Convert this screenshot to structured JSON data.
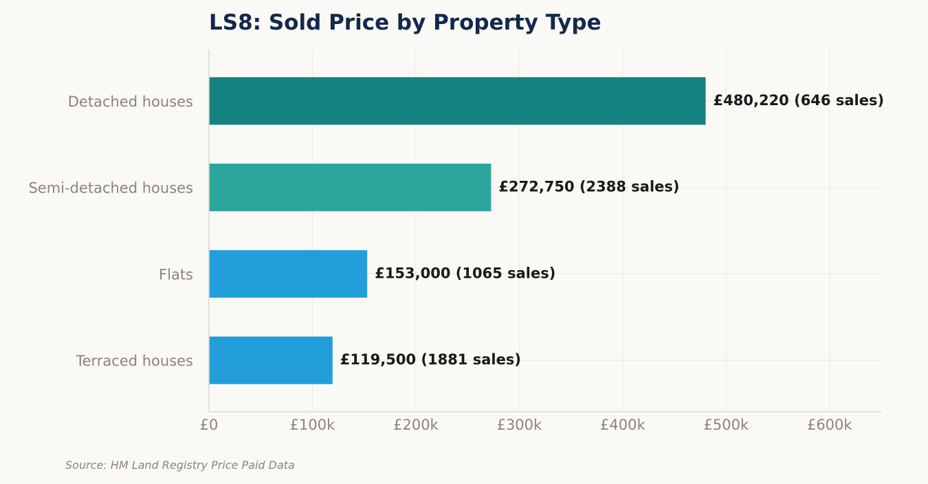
{
  "chart_data": {
    "type": "bar",
    "orientation": "horizontal",
    "title": "LS8: Sold Price by Property Type",
    "xlabel": "",
    "ylabel": "",
    "categories": [
      "Detached houses",
      "Semi-detached houses",
      "Flats",
      "Terraced houses"
    ],
    "values": [
      480220,
      272750,
      153000,
      119500
    ],
    "sales": [
      646,
      2388,
      1065,
      1881
    ],
    "data_labels": [
      "£480,220  (646 sales)",
      "£272,750  (2388 sales)",
      "£153,000  (1065 sales)",
      "£119,500  (1881 sales)"
    ],
    "colors": [
      "#178282",
      "#2ca59d",
      "#229fda",
      "#229fda"
    ],
    "xlim": [
      0,
      650000
    ],
    "xticks": [
      0,
      100000,
      200000,
      300000,
      400000,
      500000,
      600000
    ],
    "xtick_labels": [
      "£0",
      "£100k",
      "£200k",
      "£300k",
      "£400k",
      "£500k",
      "£600k"
    ],
    "grid": true,
    "legend": "none"
  },
  "footer": {
    "source": "Source: HM Land Registry Price Paid Data"
  }
}
